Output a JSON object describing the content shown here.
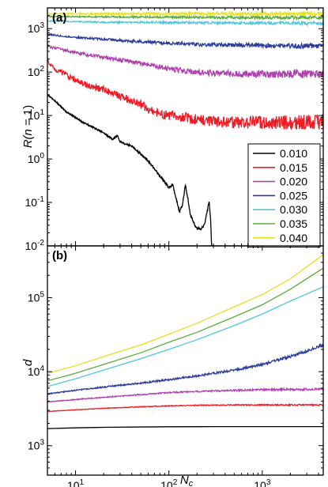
{
  "chart_data": [
    {
      "panel": "(a)",
      "type": "line",
      "xscale": "log",
      "yscale": "log",
      "xlim": [
        5,
        4500
      ],
      "ylim": [
        0.01,
        3000
      ],
      "xlabel": "",
      "ylabel": "R(n = 1)",
      "ylabel_parts": [
        "R(",
        "n",
        " = 1)"
      ],
      "yticks": [
        {
          "value": 0.01,
          "base": "10",
          "exp": "-2"
        },
        {
          "value": 0.1,
          "base": "10",
          "exp": "-1"
        },
        {
          "value": 1,
          "base": "10",
          "exp": "0"
        },
        {
          "value": 10,
          "base": "10",
          "exp": "1"
        },
        {
          "value": 100,
          "base": "10",
          "exp": "2"
        },
        {
          "value": 1000,
          "base": "10",
          "exp": "3"
        }
      ],
      "grid": false,
      "legend_position": "lower-right",
      "series": [
        {
          "name": "0.010",
          "color": "#000000",
          "noise": 0.04,
          "x": [
            5,
            6,
            7,
            8,
            10,
            12,
            15,
            18,
            20,
            25,
            28,
            30,
            35,
            40,
            50,
            60,
            70,
            80,
            90,
            100,
            110,
            120,
            130,
            140,
            150,
            160,
            170,
            180,
            190,
            200,
            220,
            240,
            260,
            270,
            280,
            290
          ],
          "y": [
            30,
            22,
            16,
            12,
            9.0,
            7.0,
            5.5,
            4.5,
            4.0,
            2.8,
            3.5,
            2.5,
            2.2,
            2.0,
            1.3,
            0.9,
            0.6,
            0.4,
            0.3,
            0.22,
            0.25,
            0.12,
            0.06,
            0.09,
            0.25,
            0.12,
            0.05,
            0.04,
            0.03,
            0.025,
            0.025,
            0.03,
            0.07,
            0.11,
            0.04,
            0.005
          ]
        },
        {
          "name": "0.015",
          "color": "#ee1c25",
          "noise": 0.18,
          "x": [
            5,
            6,
            8,
            10,
            15,
            20,
            30,
            40,
            50,
            60,
            80,
            100,
            150,
            200,
            300,
            500,
            1000,
            2000,
            4500
          ],
          "y": [
            180,
            120,
            85,
            65,
            45,
            40,
            28,
            22,
            18,
            14,
            11,
            10,
            9,
            8,
            7.5,
            7,
            7,
            7,
            7
          ]
        },
        {
          "name": "0.020",
          "color": "#b040b0",
          "noise": 0.1,
          "x": [
            5,
            7,
            10,
            15,
            20,
            30,
            50,
            70,
            100,
            150,
            200,
            300,
            500,
            1000,
            2000,
            4500
          ],
          "y": [
            400,
            330,
            280,
            240,
            220,
            190,
            160,
            140,
            120,
            105,
            100,
            95,
            92,
            90,
            90,
            90
          ]
        },
        {
          "name": "0.025",
          "color": "#2b3c9a",
          "noise": 0.06,
          "x": [
            5,
            7,
            10,
            20,
            50,
            100,
            200,
            500,
            1000,
            2000,
            4500
          ],
          "y": [
            750,
            680,
            630,
            570,
            500,
            460,
            430,
            420,
            410,
            400,
            400
          ]
        },
        {
          "name": "0.030",
          "color": "#4fc8dc",
          "noise": 0.04,
          "x": [
            5,
            10,
            20,
            50,
            100,
            200,
            500,
            1000,
            2000,
            4500
          ],
          "y": [
            1500,
            1450,
            1400,
            1400,
            1380,
            1370,
            1350,
            1350,
            1330,
            1320
          ]
        },
        {
          "name": "0.035",
          "color": "#5aaa3c",
          "noise": 0.04,
          "x": [
            5,
            10,
            50,
            100,
            500,
            1000,
            4500
          ],
          "y": [
            1900,
            1880,
            1850,
            1850,
            1800,
            1800,
            1800
          ]
        },
        {
          "name": "0.040",
          "color": "#e8e020",
          "noise": 0.05,
          "x": [
            5,
            10,
            50,
            100,
            500,
            1000,
            4500
          ],
          "y": [
            2200,
            2200,
            2200,
            2200,
            2200,
            2200,
            2200
          ]
        }
      ]
    },
    {
      "panel": "(b)",
      "type": "line",
      "xscale": "log",
      "yscale": "log",
      "xlim": [
        5,
        4500
      ],
      "ylim": [
        400,
        500000
      ],
      "xlabel_parts": [
        "N",
        "c"
      ],
      "ylabel": "d",
      "xticks": [
        {
          "value": 10,
          "base": "10",
          "exp": "1"
        },
        {
          "value": 100,
          "base": "10",
          "exp": "2"
        },
        {
          "value": 1000,
          "base": "10",
          "exp": "3"
        }
      ],
      "yticks": [
        {
          "value": 1000,
          "base": "10",
          "exp": "3"
        },
        {
          "value": 10000,
          "base": "10",
          "exp": "4"
        },
        {
          "value": 100000,
          "base": "10",
          "exp": "5"
        }
      ],
      "grid": false,
      "series": [
        {
          "name": "0.010",
          "color": "#000000",
          "noise": 0,
          "x": [
            5,
            10,
            20,
            50,
            100,
            300,
            1000,
            4500
          ],
          "y": [
            1700,
            1740,
            1770,
            1790,
            1800,
            1810,
            1810,
            1810
          ]
        },
        {
          "name": "0.015",
          "color": "#ee1c25",
          "noise": 0.01,
          "x": [
            5,
            10,
            20,
            50,
            100,
            200,
            500,
            1000,
            4500
          ],
          "y": [
            2900,
            3050,
            3200,
            3350,
            3450,
            3500,
            3550,
            3550,
            3550
          ]
        },
        {
          "name": "0.020",
          "color": "#b040b0",
          "noise": 0.015,
          "x": [
            5,
            10,
            20,
            50,
            100,
            200,
            500,
            1000,
            2000,
            4500
          ],
          "y": [
            3900,
            4200,
            4500,
            4900,
            5200,
            5400,
            5600,
            5700,
            5750,
            5800
          ]
        },
        {
          "name": "0.025",
          "color": "#2b3c9a",
          "noise": 0.02,
          "x": [
            5,
            10,
            20,
            50,
            100,
            200,
            500,
            1000,
            2000,
            3000,
            4500
          ],
          "y": [
            5000,
            5600,
            6200,
            7000,
            7800,
            8800,
            10500,
            12500,
            16000,
            19000,
            23000
          ]
        },
        {
          "name": "0.030",
          "color": "#4fc8dc",
          "noise": 0,
          "x": [
            5,
            10,
            20,
            50,
            100,
            200,
            500,
            1000,
            2000,
            4500
          ],
          "y": [
            6300,
            8000,
            10500,
            15000,
            20000,
            27000,
            42000,
            60000,
            90000,
            140000
          ]
        },
        {
          "name": "0.035",
          "color": "#5aaa3c",
          "noise": 0,
          "x": [
            5,
            10,
            20,
            50,
            100,
            200,
            500,
            1000,
            2000,
            4500
          ],
          "y": [
            7500,
            9500,
            12500,
            18000,
            25000,
            34000,
            55000,
            80000,
            130000,
            250000
          ]
        },
        {
          "name": "0.040",
          "color": "#e8e020",
          "noise": 0,
          "x": [
            5,
            10,
            20,
            50,
            100,
            200,
            500,
            1000,
            2000,
            4500
          ],
          "y": [
            9500,
            12000,
            16000,
            23000,
            32000,
            45000,
            75000,
            110000,
            180000,
            380000
          ]
        }
      ]
    }
  ]
}
